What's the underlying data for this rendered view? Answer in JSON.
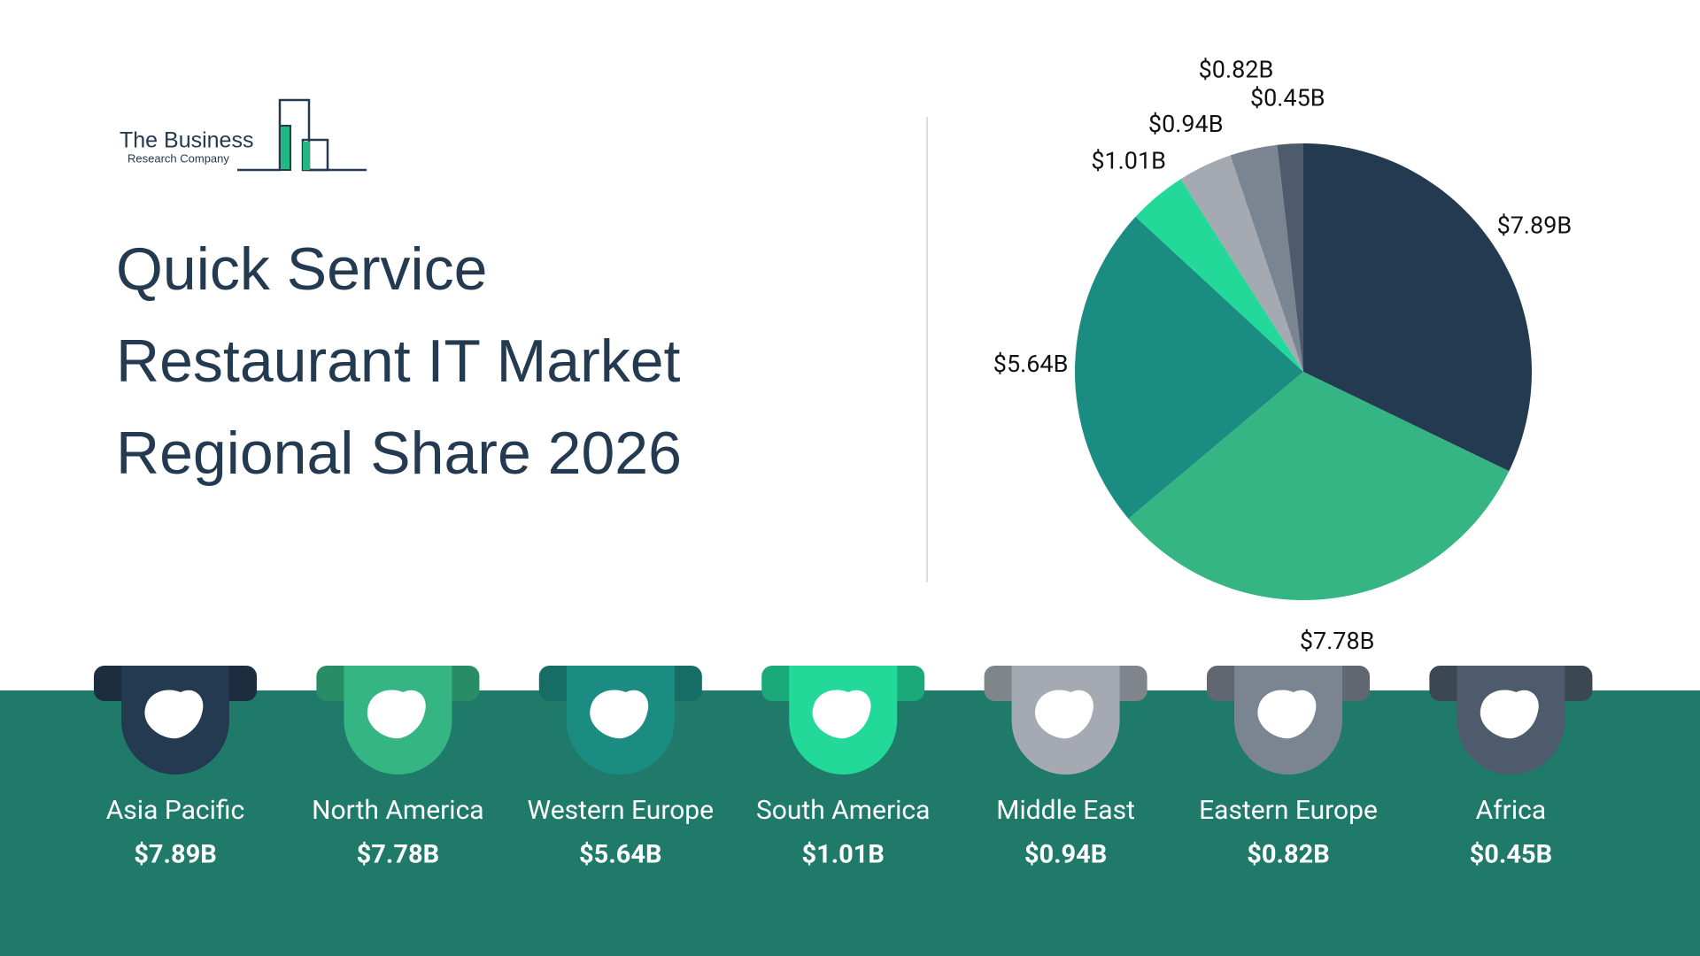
{
  "logo": {
    "name": "The Business",
    "subtitle": "Research Company"
  },
  "chart_data": {
    "type": "pie",
    "title": "Quick Service Restaurant IT Market Regional Share 2026",
    "categories": [
      "Asia Pacific",
      "North America",
      "Western Europe",
      "South America",
      "Middle East",
      "Eastern Europe",
      "Africa"
    ],
    "values": [
      7.89,
      7.78,
      5.64,
      1.01,
      0.94,
      0.82,
      0.45
    ],
    "value_labels": [
      "$7.89B",
      "$7.78B",
      "$5.64B",
      "$1.01B",
      "$0.94B",
      "$0.82B",
      "$0.45B"
    ],
    "colors": [
      "#233a50",
      "#34b583",
      "#1b8c82",
      "#22d99a",
      "#a4a9b2",
      "#7b8591",
      "#4e5b6c"
    ]
  }
}
